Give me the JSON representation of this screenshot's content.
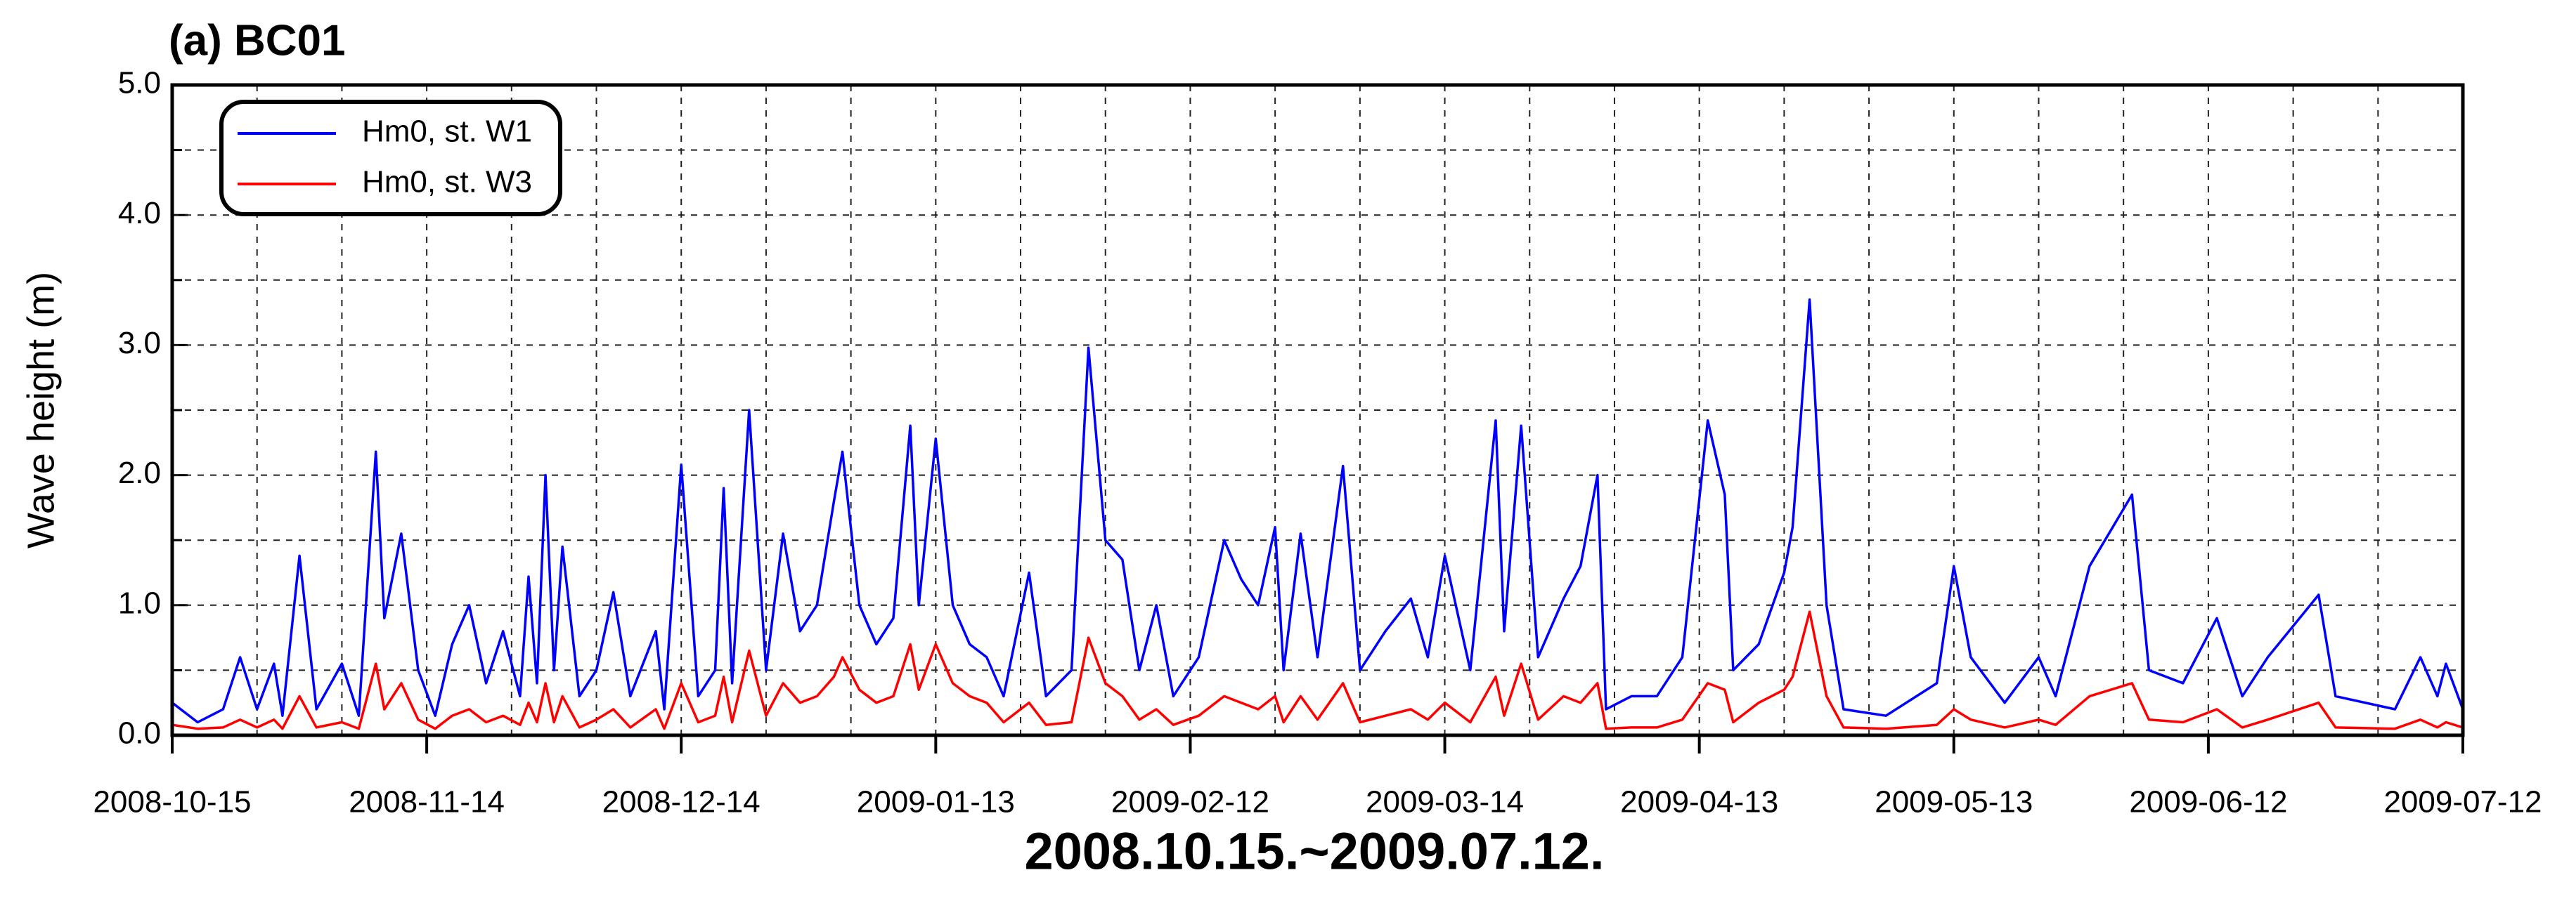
{
  "chart_data": {
    "type": "line",
    "title": "(a) BC01",
    "x_label": "2008.10.15.~2009.07.12.",
    "y_label": "Wave height (m)",
    "x": [
      "2008-10-15",
      "2008-10-18",
      "2008-10-21",
      "2008-10-23",
      "2008-10-25",
      "2008-10-27",
      "2008-10-28",
      "2008-10-30",
      "2008-11-01",
      "2008-11-04",
      "2008-11-06",
      "2008-11-08",
      "2008-11-09",
      "2008-11-11",
      "2008-11-13",
      "2008-11-15",
      "2008-11-17",
      "2008-11-19",
      "2008-11-21",
      "2008-11-23",
      "2008-11-25",
      "2008-11-26",
      "2008-11-27",
      "2008-11-28",
      "2008-11-29",
      "2008-11-30",
      "2008-12-02",
      "2008-12-04",
      "2008-12-06",
      "2008-12-08",
      "2008-12-11",
      "2008-12-12",
      "2008-12-14",
      "2008-12-16",
      "2008-12-18",
      "2008-12-19",
      "2008-12-20",
      "2008-12-22",
      "2008-12-24",
      "2008-12-26",
      "2008-12-28",
      "2008-12-30",
      "2009-01-01",
      "2009-01-02",
      "2009-01-04",
      "2009-01-06",
      "2009-01-08",
      "2009-01-10",
      "2009-01-11",
      "2009-01-13",
      "2009-01-15",
      "2009-01-17",
      "2009-01-19",
      "2009-01-21",
      "2009-01-24",
      "2009-01-26",
      "2009-01-29",
      "2009-01-31",
      "2009-02-02",
      "2009-02-04",
      "2009-02-06",
      "2009-02-08",
      "2009-02-10",
      "2009-02-13",
      "2009-02-16",
      "2009-02-18",
      "2009-02-20",
      "2009-02-22",
      "2009-02-23",
      "2009-02-25",
      "2009-02-27",
      "2009-03-02",
      "2009-03-04",
      "2009-03-07",
      "2009-03-10",
      "2009-03-12",
      "2009-03-14",
      "2009-03-17",
      "2009-03-20",
      "2009-03-21",
      "2009-03-23",
      "2009-03-25",
      "2009-03-28",
      "2009-03-30",
      "2009-04-01",
      "2009-04-02",
      "2009-04-05",
      "2009-04-08",
      "2009-04-11",
      "2009-04-14",
      "2009-04-16",
      "2009-04-17",
      "2009-04-20",
      "2009-04-23",
      "2009-04-24",
      "2009-04-26",
      "2009-04-28",
      "2009-04-30",
      "2009-05-05",
      "2009-05-11",
      "2009-05-13",
      "2009-05-15",
      "2009-05-19",
      "2009-05-23",
      "2009-05-25",
      "2009-05-29",
      "2009-06-03",
      "2009-06-05",
      "2009-06-09",
      "2009-06-13",
      "2009-06-16",
      "2009-06-19",
      "2009-06-25",
      "2009-06-27",
      "2009-07-04",
      "2009-07-07",
      "2009-07-09",
      "2009-07-10",
      "2009-07-12"
    ],
    "series": [
      {
        "name": "Hm0, st. W1",
        "color": "#0000ff",
        "values": [
          0.25,
          0.1,
          0.2,
          0.6,
          0.2,
          0.55,
          0.15,
          1.38,
          0.2,
          0.55,
          0.15,
          2.18,
          0.9,
          1.55,
          0.5,
          0.15,
          0.7,
          1.0,
          0.4,
          0.8,
          0.3,
          1.22,
          0.4,
          2.0,
          0.5,
          1.45,
          0.3,
          0.5,
          1.1,
          0.3,
          0.8,
          0.2,
          2.08,
          0.3,
          0.5,
          1.9,
          0.4,
          2.5,
          0.5,
          1.55,
          0.8,
          1.0,
          1.8,
          2.18,
          1.0,
          0.7,
          0.9,
          2.38,
          1.0,
          2.28,
          1.0,
          0.7,
          0.6,
          0.3,
          1.25,
          0.3,
          0.5,
          2.98,
          1.5,
          1.35,
          0.5,
          1.0,
          0.3,
          0.6,
          1.5,
          1.2,
          1.0,
          1.6,
          0.5,
          1.55,
          0.6,
          2.07,
          0.5,
          0.8,
          1.05,
          0.6,
          1.38,
          0.5,
          2.42,
          0.8,
          2.38,
          0.6,
          1.05,
          1.3,
          2.0,
          0.2,
          0.3,
          0.3,
          0.6,
          2.42,
          1.85,
          0.5,
          0.7,
          1.25,
          1.6,
          3.35,
          1.0,
          0.2,
          0.15,
          0.4,
          1.3,
          0.6,
          0.25,
          0.6,
          0.3,
          1.3,
          1.85,
          0.5,
          0.4,
          0.9,
          0.3,
          0.6,
          1.08,
          0.3,
          0.2,
          0.6,
          0.3,
          0.55,
          0.2
        ]
      },
      {
        "name": "Hm0, st. W3",
        "color": "#ff0000",
        "values": [
          0.08,
          0.05,
          0.06,
          0.12,
          0.06,
          0.12,
          0.05,
          0.3,
          0.06,
          0.1,
          0.05,
          0.55,
          0.2,
          0.4,
          0.12,
          0.05,
          0.15,
          0.2,
          0.1,
          0.15,
          0.08,
          0.25,
          0.1,
          0.4,
          0.1,
          0.3,
          0.06,
          0.12,
          0.2,
          0.06,
          0.2,
          0.05,
          0.4,
          0.1,
          0.15,
          0.45,
          0.1,
          0.65,
          0.15,
          0.4,
          0.25,
          0.3,
          0.45,
          0.6,
          0.35,
          0.25,
          0.3,
          0.7,
          0.35,
          0.7,
          0.4,
          0.3,
          0.25,
          0.1,
          0.25,
          0.08,
          0.1,
          0.75,
          0.4,
          0.3,
          0.12,
          0.2,
          0.08,
          0.15,
          0.3,
          0.25,
          0.2,
          0.3,
          0.1,
          0.3,
          0.12,
          0.4,
          0.1,
          0.15,
          0.2,
          0.12,
          0.25,
          0.1,
          0.45,
          0.15,
          0.55,
          0.12,
          0.3,
          0.25,
          0.4,
          0.05,
          0.06,
          0.06,
          0.12,
          0.4,
          0.35,
          0.1,
          0.25,
          0.35,
          0.45,
          0.95,
          0.3,
          0.06,
          0.05,
          0.08,
          0.2,
          0.12,
          0.06,
          0.12,
          0.08,
          0.3,
          0.4,
          0.12,
          0.1,
          0.2,
          0.06,
          0.12,
          0.25,
          0.06,
          0.05,
          0.12,
          0.06,
          0.1,
          0.06
        ]
      }
    ],
    "xlim": [
      "2008-10-15",
      "2009-07-12"
    ],
    "xticks": [
      "2008-10-15",
      "2008-11-14",
      "2008-12-14",
      "2009-01-13",
      "2009-02-12",
      "2009-03-14",
      "2009-04-13",
      "2009-05-13",
      "2009-06-12",
      "2009-07-12"
    ],
    "ylim": [
      0,
      5
    ],
    "yticks": [
      {
        "value": 0,
        "label": "0.0"
      },
      {
        "value": 1,
        "label": "1.0"
      },
      {
        "value": 2,
        "label": "2.0"
      },
      {
        "value": 3,
        "label": "3.0"
      },
      {
        "value": 4,
        "label": "4.0"
      },
      {
        "value": 5,
        "label": "5.0"
      }
    ],
    "grid": true,
    "legend": "upper left"
  }
}
